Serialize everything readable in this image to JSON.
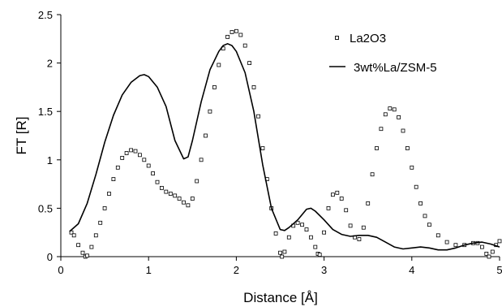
{
  "chart_data": {
    "type": "line",
    "title": "",
    "xlabel": "Distance [Å]",
    "ylabel": "FT [R]",
    "xlim": [
      0,
      5
    ],
    "ylim": [
      0,
      2.5
    ],
    "x_ticks": [
      "0",
      "1",
      "2",
      "3",
      "4",
      "5"
    ],
    "y_ticks": [
      "0",
      "0.5",
      "1",
      "1.5",
      "2",
      "2.5"
    ],
    "grid": false,
    "legend_position": "top-right",
    "series": [
      {
        "name": "La2O3",
        "style": "square-markers",
        "color": "#000000",
        "points": [
          [
            0.12,
            0.25
          ],
          [
            0.15,
            0.22
          ],
          [
            0.2,
            0.12
          ],
          [
            0.25,
            0.04
          ],
          [
            0.28,
            0.0
          ],
          [
            0.3,
            0.01
          ],
          [
            0.35,
            0.1
          ],
          [
            0.4,
            0.22
          ],
          [
            0.45,
            0.35
          ],
          [
            0.5,
            0.5
          ],
          [
            0.55,
            0.65
          ],
          [
            0.6,
            0.8
          ],
          [
            0.65,
            0.92
          ],
          [
            0.7,
            1.02
          ],
          [
            0.75,
            1.07
          ],
          [
            0.8,
            1.1
          ],
          [
            0.85,
            1.09
          ],
          [
            0.9,
            1.05
          ],
          [
            0.95,
            1.0
          ],
          [
            1.0,
            0.94
          ],
          [
            1.05,
            0.86
          ],
          [
            1.1,
            0.77
          ],
          [
            1.15,
            0.71
          ],
          [
            1.2,
            0.67
          ],
          [
            1.25,
            0.65
          ],
          [
            1.3,
            0.63
          ],
          [
            1.35,
            0.6
          ],
          [
            1.4,
            0.56
          ],
          [
            1.45,
            0.53
          ],
          [
            1.5,
            0.6
          ],
          [
            1.55,
            0.78
          ],
          [
            1.6,
            1.0
          ],
          [
            1.65,
            1.25
          ],
          [
            1.7,
            1.5
          ],
          [
            1.75,
            1.75
          ],
          [
            1.8,
            1.98
          ],
          [
            1.85,
            2.15
          ],
          [
            1.9,
            2.27
          ],
          [
            1.95,
            2.32
          ],
          [
            2.0,
            2.33
          ],
          [
            2.05,
            2.29
          ],
          [
            2.1,
            2.18
          ],
          [
            2.15,
            2.0
          ],
          [
            2.2,
            1.75
          ],
          [
            2.25,
            1.45
          ],
          [
            2.3,
            1.12
          ],
          [
            2.35,
            0.8
          ],
          [
            2.4,
            0.5
          ],
          [
            2.45,
            0.24
          ],
          [
            2.5,
            0.04
          ],
          [
            2.52,
            0.0
          ],
          [
            2.55,
            0.05
          ],
          [
            2.6,
            0.2
          ],
          [
            2.65,
            0.32
          ],
          [
            2.7,
            0.35
          ],
          [
            2.75,
            0.33
          ],
          [
            2.8,
            0.28
          ],
          [
            2.85,
            0.2
          ],
          [
            2.9,
            0.1
          ],
          [
            2.93,
            0.03
          ],
          [
            2.95,
            0.02
          ],
          [
            3.0,
            0.25
          ],
          [
            3.05,
            0.5
          ],
          [
            3.1,
            0.64
          ],
          [
            3.15,
            0.66
          ],
          [
            3.2,
            0.6
          ],
          [
            3.25,
            0.48
          ],
          [
            3.3,
            0.32
          ],
          [
            3.35,
            0.2
          ],
          [
            3.4,
            0.18
          ],
          [
            3.45,
            0.3
          ],
          [
            3.5,
            0.55
          ],
          [
            3.55,
            0.85
          ],
          [
            3.6,
            1.12
          ],
          [
            3.65,
            1.32
          ],
          [
            3.7,
            1.47
          ],
          [
            3.75,
            1.53
          ],
          [
            3.8,
            1.52
          ],
          [
            3.85,
            1.44
          ],
          [
            3.9,
            1.3
          ],
          [
            3.95,
            1.12
          ],
          [
            4.0,
            0.92
          ],
          [
            4.05,
            0.72
          ],
          [
            4.1,
            0.55
          ],
          [
            4.15,
            0.42
          ],
          [
            4.2,
            0.33
          ],
          [
            4.3,
            0.22
          ],
          [
            4.4,
            0.15
          ],
          [
            4.5,
            0.12
          ],
          [
            4.6,
            0.12
          ],
          [
            4.7,
            0.14
          ],
          [
            4.75,
            0.14
          ],
          [
            4.8,
            0.1
          ],
          [
            4.85,
            0.03
          ],
          [
            4.88,
            0.0
          ],
          [
            4.92,
            0.05
          ],
          [
            4.96,
            0.12
          ],
          [
            5.0,
            0.16
          ]
        ]
      },
      {
        "name": "3wt%La/ZSM-5",
        "style": "line",
        "color": "#000000",
        "points": [
          [
            0.1,
            0.26
          ],
          [
            0.2,
            0.34
          ],
          [
            0.3,
            0.55
          ],
          [
            0.4,
            0.85
          ],
          [
            0.5,
            1.18
          ],
          [
            0.6,
            1.46
          ],
          [
            0.7,
            1.67
          ],
          [
            0.8,
            1.8
          ],
          [
            0.9,
            1.87
          ],
          [
            0.95,
            1.88
          ],
          [
            1.0,
            1.86
          ],
          [
            1.1,
            1.75
          ],
          [
            1.2,
            1.55
          ],
          [
            1.3,
            1.2
          ],
          [
            1.4,
            1.01
          ],
          [
            1.45,
            1.03
          ],
          [
            1.5,
            1.2
          ],
          [
            1.6,
            1.6
          ],
          [
            1.7,
            1.93
          ],
          [
            1.8,
            2.12
          ],
          [
            1.85,
            2.18
          ],
          [
            1.9,
            2.2
          ],
          [
            1.95,
            2.18
          ],
          [
            2.0,
            2.12
          ],
          [
            2.1,
            1.9
          ],
          [
            2.2,
            1.5
          ],
          [
            2.3,
            0.95
          ],
          [
            2.4,
            0.5
          ],
          [
            2.5,
            0.28
          ],
          [
            2.55,
            0.27
          ],
          [
            2.6,
            0.3
          ],
          [
            2.7,
            0.38
          ],
          [
            2.8,
            0.49
          ],
          [
            2.85,
            0.5
          ],
          [
            2.9,
            0.47
          ],
          [
            3.0,
            0.38
          ],
          [
            3.1,
            0.28
          ],
          [
            3.2,
            0.23
          ],
          [
            3.3,
            0.21
          ],
          [
            3.4,
            0.22
          ],
          [
            3.5,
            0.22
          ],
          [
            3.6,
            0.2
          ],
          [
            3.7,
            0.15
          ],
          [
            3.8,
            0.1
          ],
          [
            3.9,
            0.08
          ],
          [
            4.0,
            0.09
          ],
          [
            4.1,
            0.1
          ],
          [
            4.2,
            0.09
          ],
          [
            4.3,
            0.07
          ],
          [
            4.4,
            0.07
          ],
          [
            4.5,
            0.09
          ],
          [
            4.6,
            0.12
          ],
          [
            4.7,
            0.14
          ],
          [
            4.8,
            0.15
          ],
          [
            4.9,
            0.13
          ],
          [
            5.0,
            0.1
          ]
        ]
      }
    ]
  }
}
